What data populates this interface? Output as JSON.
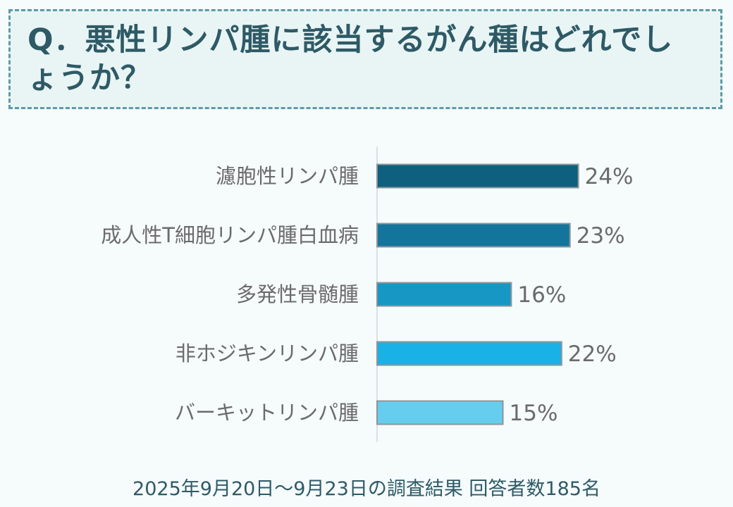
{
  "question": {
    "text": "Q．悪性リンパ腫に該当するがん種はどれでしょうか？"
  },
  "chart_data": {
    "type": "bar",
    "orientation": "horizontal",
    "categories": [
      "濾胞性リンパ腫",
      "成人性T細胞リンパ腫白血病",
      "多発性骨髄腫",
      "非ホジキンリンパ腫",
      "バーキットリンパ腫"
    ],
    "values": [
      24,
      23,
      16,
      22,
      15
    ],
    "value_labels": [
      "24%",
      "23%",
      "16%",
      "22%",
      "15%"
    ],
    "unit": "%",
    "colors": [
      "#0f5f7e",
      "#13759c",
      "#1797c3",
      "#1ab2e6",
      "#66cdef"
    ],
    "bar_border_color": "#8e959a",
    "axis_color": "#cfd9dc",
    "grid": false,
    "legend": "none"
  },
  "footer": {
    "text": "2025年9月20日～9月23日の調査結果  回答者数185名"
  }
}
